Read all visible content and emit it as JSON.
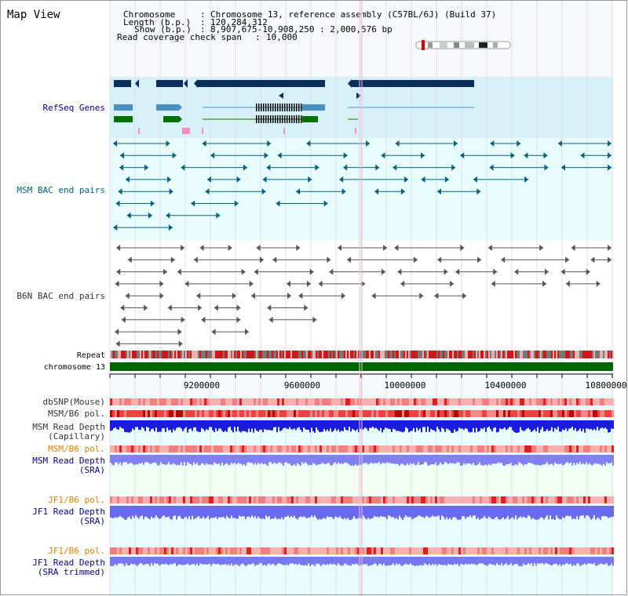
{
  "header": {
    "view_title": "Map View",
    "info_rows": [
      {
        "label": "Chromosome",
        "value": "Chromosome 13, reference assembly (C57BL/6J) (Build 37)"
      },
      {
        "label": "Length (b.p.)",
        "value": "120,284,312"
      },
      {
        "label": "Show (b.p.)",
        "value": "8,907,675-10,908,250 : 2,000,576 bp"
      },
      {
        "label": "Read coverage check span",
        "value": "10,000"
      }
    ]
  },
  "tracks": {
    "refseq": "RefSeq Genes",
    "msm_bac": "MSM BAC end pairs",
    "b6n_bac": "B6N BAC end pairs",
    "repeat": "Repeat",
    "chromosome": "chromosome 13",
    "dbsnp": "dbSNP(Mouse)",
    "msm_pol_1": "MSM/B6 pol.",
    "msm_depth_cap_1": "MSM Read Depth",
    "msm_depth_cap_2": "(Capillary)",
    "msm_pol_2": "MSM/B6 pol.",
    "msm_depth_sra_1": "MSM Read Depth",
    "msm_depth_sra_2": "(SRA)",
    "jf1_pol_1": "JF1/B6 pol.",
    "jf1_depth_sra_1": "JF1 Read Depth",
    "jf1_depth_sra_2": "(SRA)",
    "jf1_pol_2": "JF1/B6 pol.",
    "jf1_depth_trim_1": "JF1 Read Depth",
    "jf1_depth_trim_2": "(SRA trimmed)"
  },
  "ruler": {
    "ticks": [
      "9200000",
      "9600000",
      "10000000",
      "10400000",
      "10800000"
    ]
  },
  "colors": {
    "title_blue": "#00008b",
    "teal": "#006080",
    "orange": "#e08000",
    "navy_gene": "#0b2d5e",
    "refseq_light": "#4a90c0",
    "green_gene": "#007000",
    "chromosome_green": "#006400",
    "refseq_band": "#d8f0f8",
    "track_band": "#e8fcfc",
    "depth_blue": "#1c1ce0",
    "depth_light_blue": "#7878f0"
  }
}
